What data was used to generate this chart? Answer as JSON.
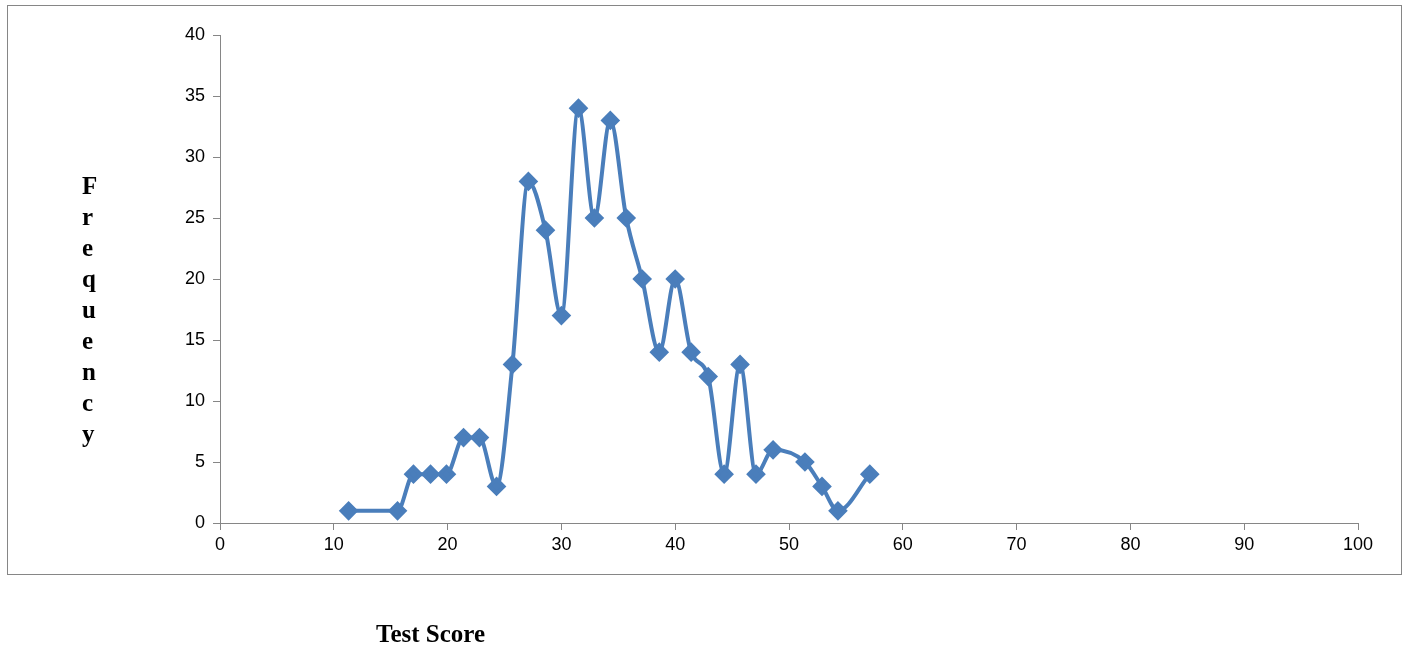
{
  "chart_data": {
    "type": "line",
    "xlabel": "Test Score",
    "ylabel": "Frequency",
    "x": [
      11.3,
      15.6,
      17.0,
      18.5,
      19.9,
      21.4,
      22.8,
      24.3,
      25.7,
      27.1,
      28.6,
      30.0,
      31.5,
      32.9,
      34.3,
      35.7,
      37.1,
      38.6,
      40.0,
      41.4,
      42.9,
      44.3,
      45.7,
      47.1,
      48.6,
      51.4,
      52.9,
      54.3,
      57.1
    ],
    "series": [
      {
        "color": "#4a7ebb",
        "values": [
          1,
          1,
          4,
          4,
          4,
          7,
          7,
          3,
          13,
          28,
          24,
          17,
          34,
          25,
          33,
          25,
          20,
          14,
          20,
          14,
          12,
          4,
          13,
          4,
          6,
          5,
          3,
          1,
          4
        ]
      }
    ],
    "xlim": [
      0,
      100
    ],
    "xticks": [
      0,
      10,
      20,
      30,
      40,
      50,
      60,
      70,
      80,
      90,
      100
    ],
    "ylim": [
      0,
      40
    ],
    "yticks": [
      0,
      5,
      10,
      15,
      20,
      25,
      30,
      35,
      40
    ],
    "marker": "diamond",
    "line_style": "solid",
    "grid": false,
    "legend": false
  }
}
